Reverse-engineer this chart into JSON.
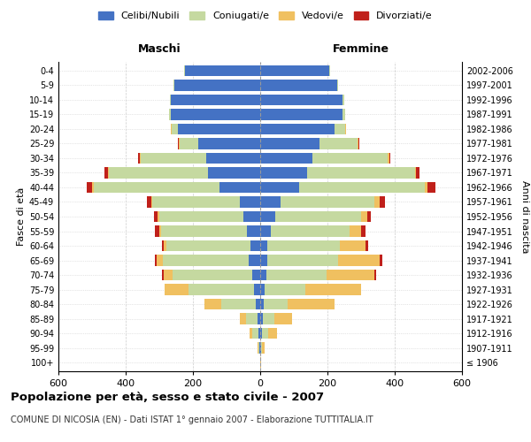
{
  "age_groups": [
    "100+",
    "95-99",
    "90-94",
    "85-89",
    "80-84",
    "75-79",
    "70-74",
    "65-69",
    "60-64",
    "55-59",
    "50-54",
    "45-49",
    "40-44",
    "35-39",
    "30-34",
    "25-29",
    "20-24",
    "15-19",
    "10-14",
    "5-9",
    "0-4"
  ],
  "birth_years": [
    "≤ 1906",
    "1907-1911",
    "1912-1916",
    "1917-1921",
    "1922-1926",
    "1927-1931",
    "1932-1936",
    "1937-1941",
    "1942-1946",
    "1947-1951",
    "1952-1956",
    "1957-1961",
    "1962-1966",
    "1967-1971",
    "1972-1976",
    "1977-1981",
    "1982-1986",
    "1987-1991",
    "1992-1996",
    "1997-2001",
    "2002-2006"
  ],
  "males": {
    "celibi": [
      0,
      2,
      5,
      8,
      12,
      18,
      25,
      35,
      30,
      40,
      50,
      60,
      120,
      155,
      160,
      185,
      245,
      265,
      265,
      255,
      225
    ],
    "coniugati": [
      0,
      3,
      18,
      35,
      105,
      195,
      235,
      255,
      250,
      255,
      250,
      260,
      375,
      295,
      195,
      55,
      18,
      5,
      4,
      2,
      2
    ],
    "vedovi": [
      0,
      2,
      8,
      18,
      50,
      70,
      28,
      18,
      8,
      5,
      5,
      5,
      4,
      2,
      2,
      2,
      2,
      0,
      0,
      0,
      0
    ],
    "divorziati": [
      0,
      0,
      0,
      0,
      0,
      2,
      5,
      5,
      4,
      12,
      10,
      12,
      18,
      10,
      5,
      2,
      2,
      0,
      0,
      0,
      0
    ]
  },
  "females": {
    "nubili": [
      0,
      2,
      5,
      8,
      10,
      14,
      18,
      22,
      22,
      32,
      45,
      60,
      115,
      140,
      155,
      175,
      220,
      245,
      245,
      230,
      205
    ],
    "coniugate": [
      0,
      3,
      18,
      35,
      72,
      120,
      180,
      210,
      215,
      235,
      255,
      280,
      375,
      320,
      225,
      115,
      32,
      8,
      4,
      2,
      2
    ],
    "vedove": [
      2,
      8,
      28,
      52,
      138,
      165,
      142,
      122,
      75,
      32,
      18,
      14,
      8,
      4,
      4,
      2,
      2,
      0,
      0,
      0,
      0
    ],
    "divorziate": [
      0,
      0,
      0,
      0,
      0,
      2,
      5,
      8,
      8,
      15,
      12,
      18,
      22,
      10,
      4,
      2,
      2,
      0,
      0,
      0,
      0
    ]
  },
  "colors": {
    "celibi": "#4472c4",
    "coniugati": "#c5d9a0",
    "vedovi": "#f0c060",
    "divorziati": "#c0201a"
  },
  "legend_labels": [
    "Celibi/Nubili",
    "Coniugati/e",
    "Vedovi/e",
    "Divorziati/e"
  ],
  "title": "Popolazione per età, sesso e stato civile - 2007",
  "subtitle": "COMUNE DI NICOSIA (EN) - Dati ISTAT 1° gennaio 2007 - Elaborazione TUTTITALIA.IT",
  "xlabel_left": "Maschi",
  "xlabel_right": "Femmine",
  "ylabel_left": "Fasce di età",
  "ylabel_right": "Anni di nascita",
  "xlim": 600,
  "bg_color": "#ffffff",
  "grid_color": "#cccccc",
  "bar_height": 0.75
}
